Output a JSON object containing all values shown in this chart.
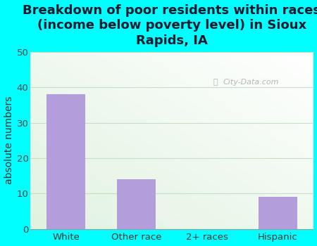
{
  "title": "Breakdown of poor residents within races\n(income below poverty level) in Sioux\nRapids, IA",
  "categories": [
    "White",
    "Other race",
    "2+ races",
    "Hispanic"
  ],
  "values": [
    38,
    14,
    0,
    9
  ],
  "bar_color": "#b39ddb",
  "ylabel": "absolute numbers",
  "ylim": [
    0,
    50
  ],
  "yticks": [
    0,
    10,
    20,
    30,
    40,
    50
  ],
  "bg_outer": "#00ffff",
  "watermark": "City-Data.com",
  "title_fontsize": 13,
  "ylabel_fontsize": 10,
  "tick_fontsize": 9.5,
  "title_color": "#1a1a2e",
  "grid_color": "#c8ddc8",
  "bar_width": 0.55
}
